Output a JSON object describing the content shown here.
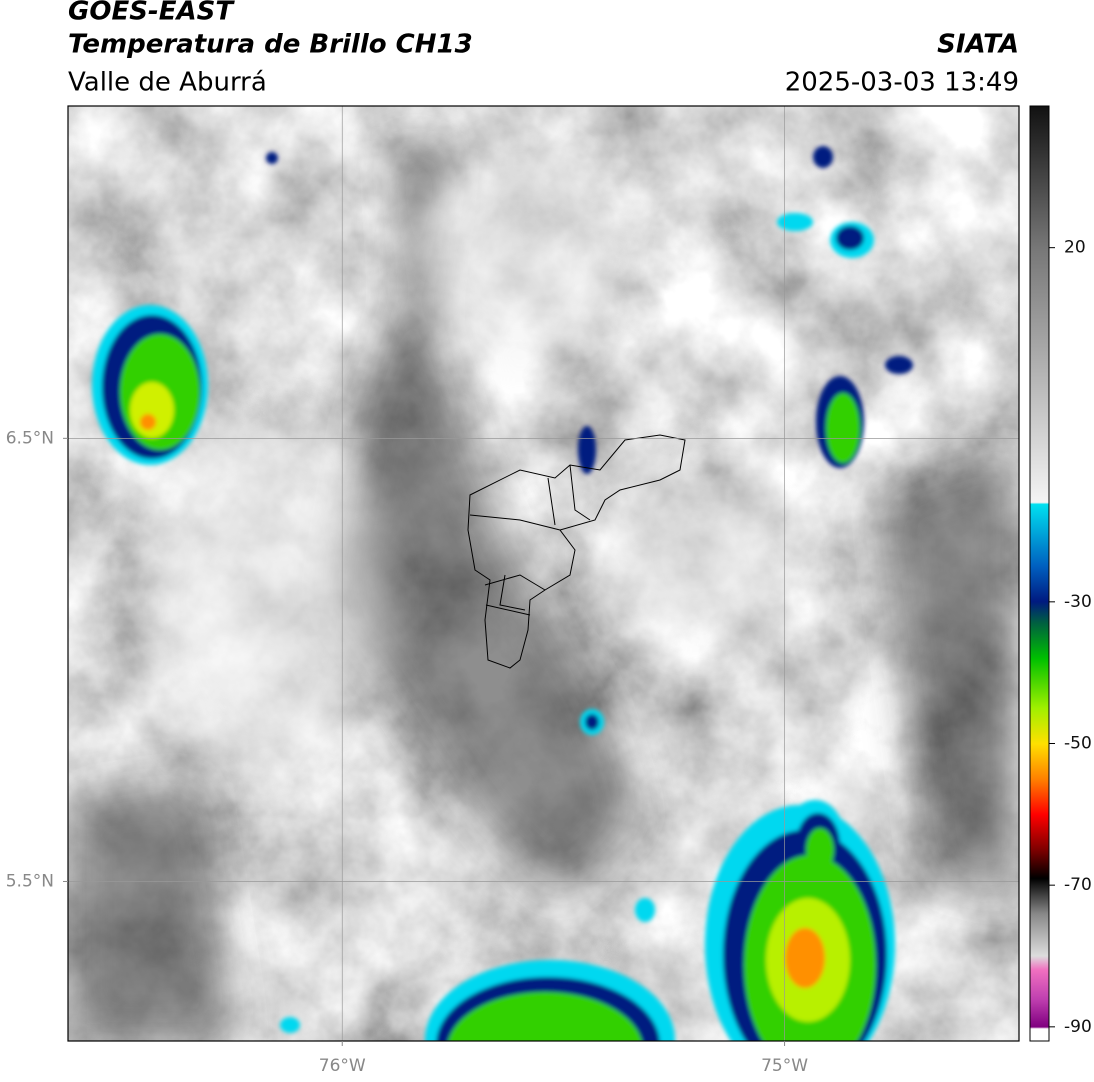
{
  "header": {
    "title": "GOES-EAST",
    "subtitle": "Temperatura de Brillo CH13",
    "region": "Valle de Aburrá",
    "source": "SIATA",
    "datetime": "2025-03-03 13:49"
  },
  "map": {
    "xlim": [
      -76.62,
      -74.47
    ],
    "ylim": [
      5.14,
      7.25
    ],
    "xticks": [
      {
        "value": -76,
        "label": "76°W"
      },
      {
        "value": -75,
        "label": "75°W"
      }
    ],
    "yticks": [
      {
        "value": 6.5,
        "label": "6.5°N"
      },
      {
        "value": 5.5,
        "label": "5.5°N"
      }
    ],
    "grid": true
  },
  "colorbar": {
    "lim": [
      -92,
      40
    ],
    "ticks": [
      20,
      -30,
      -50,
      -70,
      -90
    ]
  }
}
